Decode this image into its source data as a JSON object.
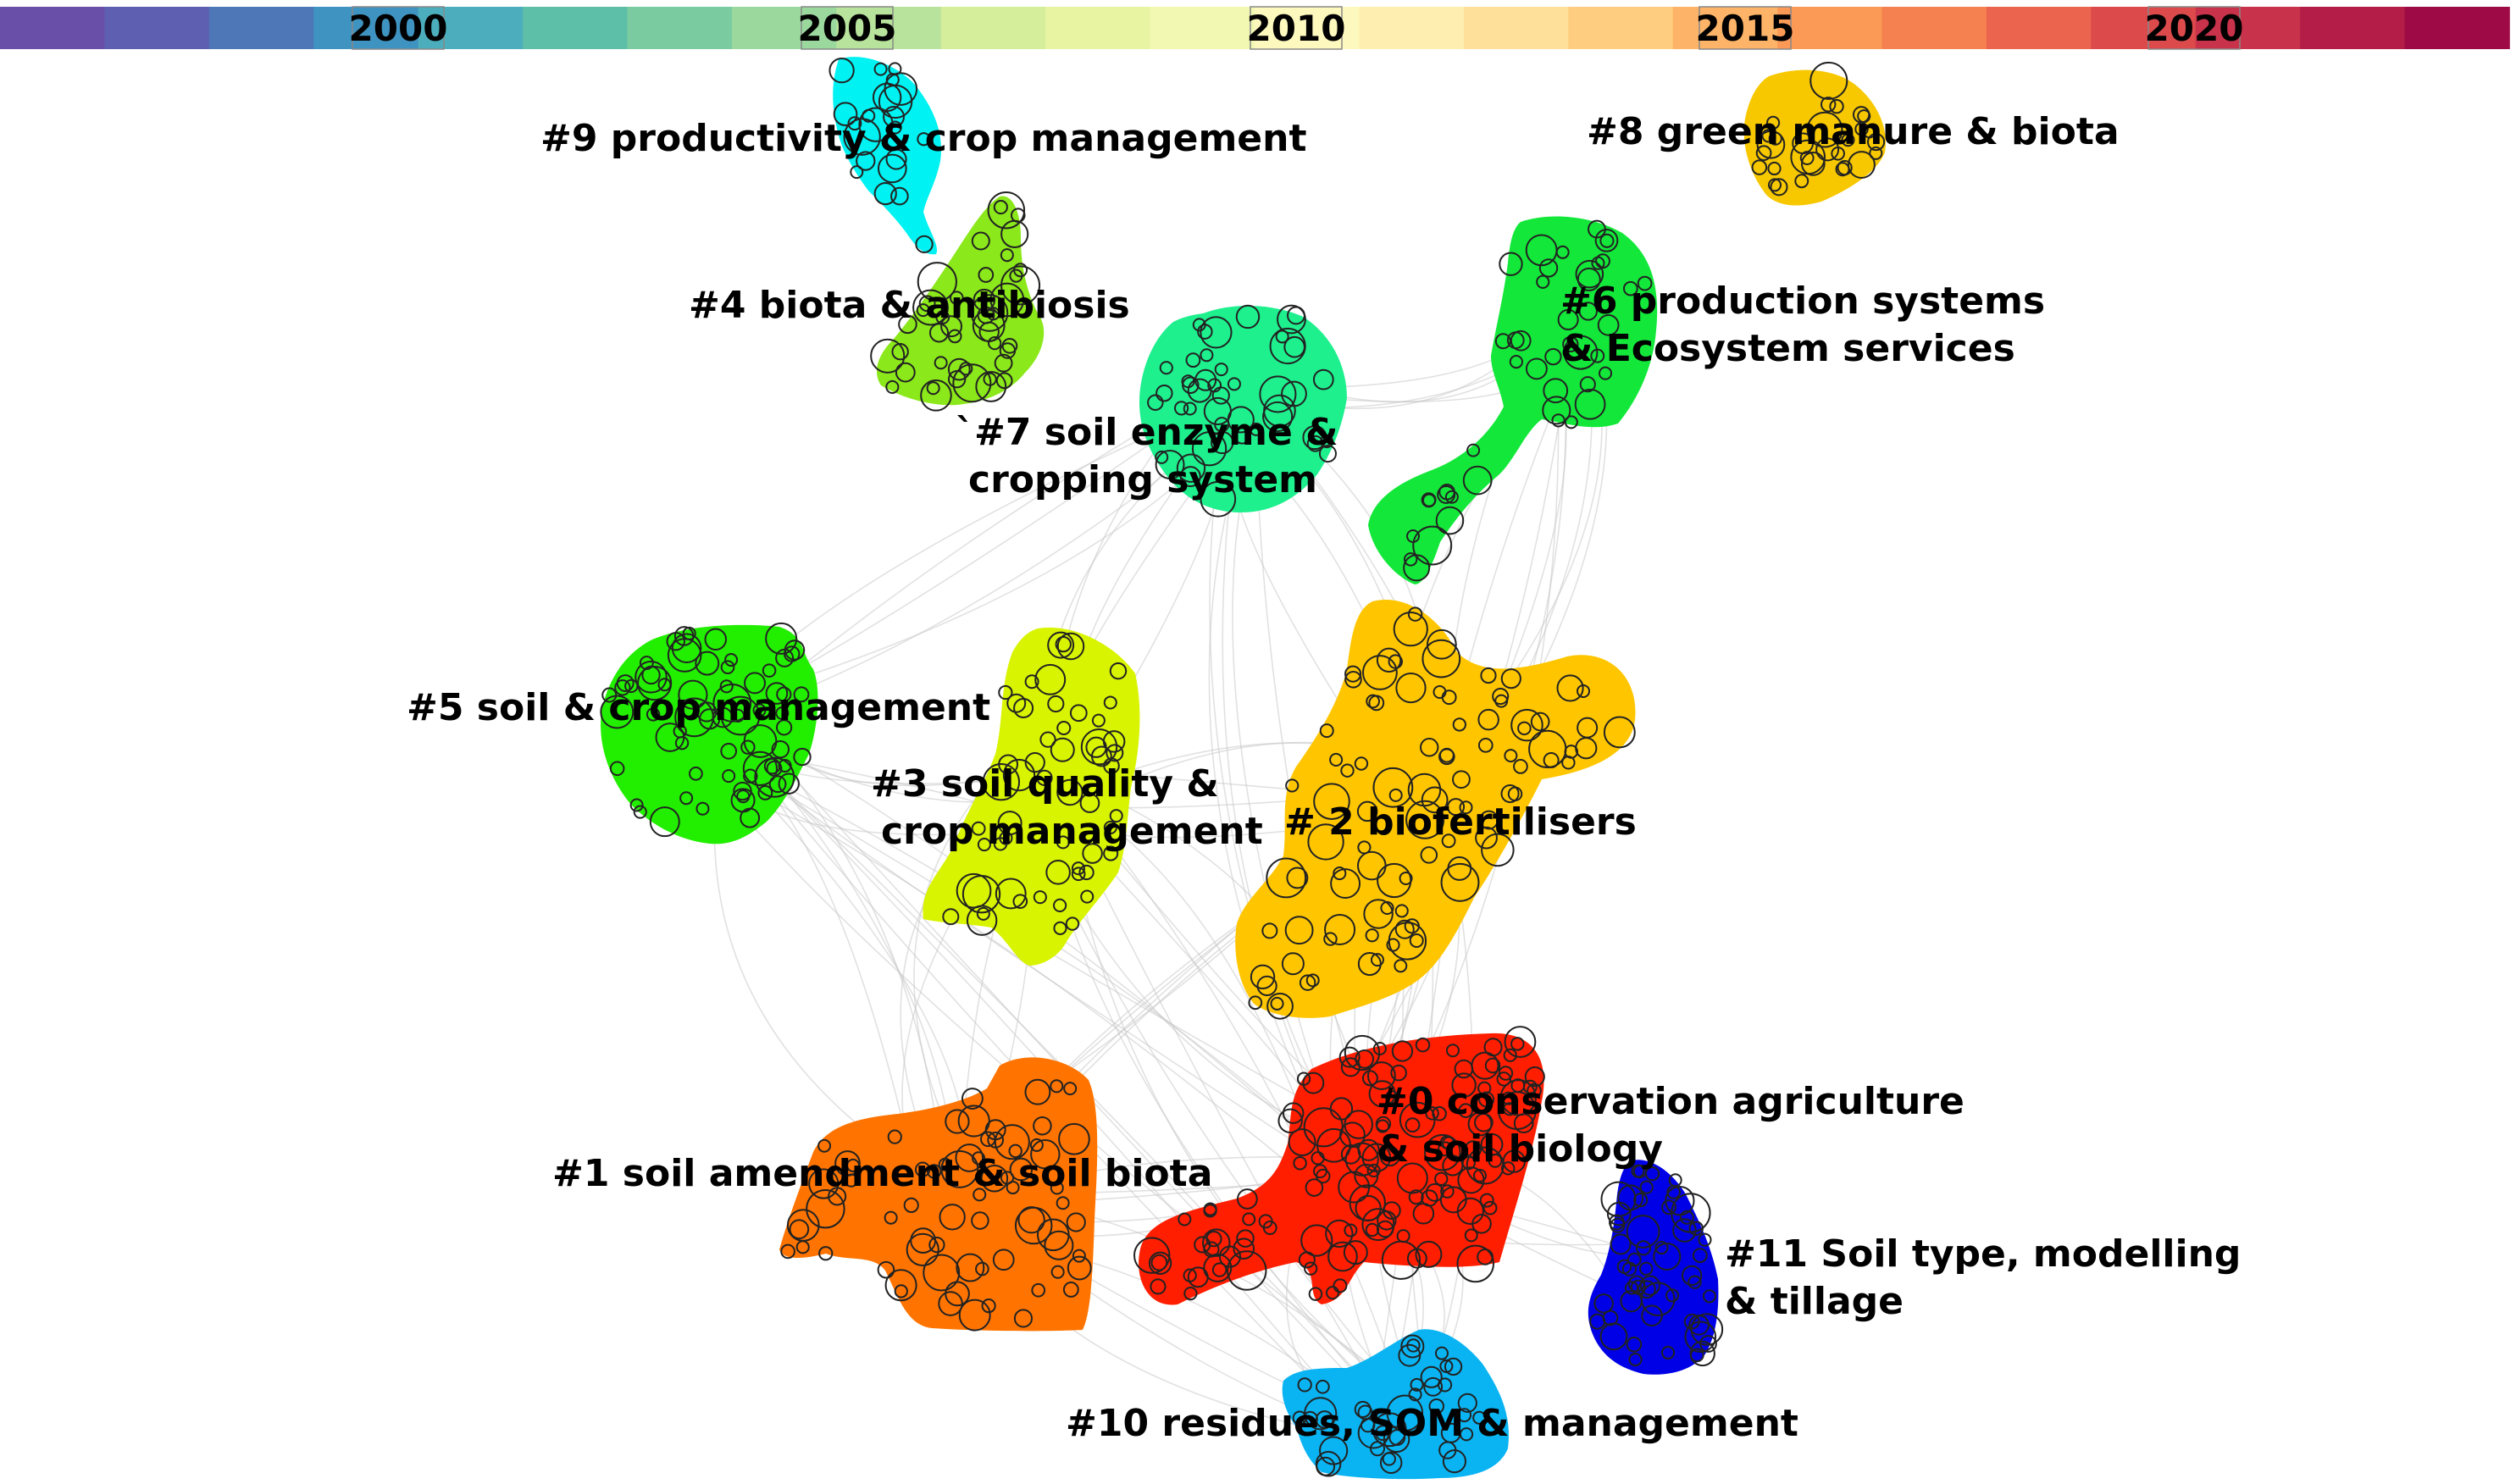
{
  "timeline": {
    "colors": [
      "#6a4fa8",
      "#5e5fb0",
      "#4e77b8",
      "#3f93c0",
      "#4caebc",
      "#5ebfa8",
      "#7acca0",
      "#9ad89e",
      "#b8e39c",
      "#d4ee9c",
      "#e8f4a2",
      "#f2f8b2",
      "#fdf8be",
      "#feefb0",
      "#fee09a",
      "#fecd80",
      "#fdb468",
      "#fb9a56",
      "#f58050",
      "#ea644e",
      "#dc4a4c",
      "#c8324a",
      "#b31d48",
      "#9e0a45"
    ],
    "year_labels": [
      "2000",
      "2005",
      "2010",
      "2015",
      "2020"
    ]
  },
  "clusters": [
    {
      "id": "c0",
      "label_lines": [
        "#0 conservation agriculture",
        "& soil biology"
      ],
      "color": "#ff1e00"
    },
    {
      "id": "c1",
      "label_lines": [
        "#1 soil amendment & soil biota"
      ],
      "color": "#ff7400"
    },
    {
      "id": "c2",
      "label_lines": [
        "# 2 biofertilisers"
      ],
      "color": "#ffc600"
    },
    {
      "id": "c3",
      "label_lines": [
        "#3 soil quality &",
        "crop management"
      ],
      "color": "#d8f400"
    },
    {
      "id": "c4",
      "label_lines": [
        "#4 biota & antibiosis"
      ],
      "color": "#8be81a"
    },
    {
      "id": "c5",
      "label_lines": [
        "#5 soil & crop management"
      ],
      "color": "#22ee00"
    },
    {
      "id": "c6",
      "label_lines": [
        "#6 production systems",
        "& Ecosystem services"
      ],
      "color": "#13e83a"
    },
    {
      "id": "c7",
      "label_lines": [
        "`#7 soil enzyme &",
        "cropping system"
      ],
      "color": "#1ef08e"
    },
    {
      "id": "c8",
      "label_lines": [
        "#8 green manure & biota"
      ],
      "color": "#f7c800"
    },
    {
      "id": "c9",
      "label_lines": [
        "#9 productivity & crop management"
      ],
      "color": "#00f2f2"
    },
    {
      "id": "c10",
      "label_lines": [
        "#10 residues, SOM & management"
      ],
      "color": "#0ab4f2"
    },
    {
      "id": "c11",
      "label_lines": [
        "#11 Soil type, modelling",
        "& tillage"
      ],
      "color": "#0000e6"
    }
  ]
}
